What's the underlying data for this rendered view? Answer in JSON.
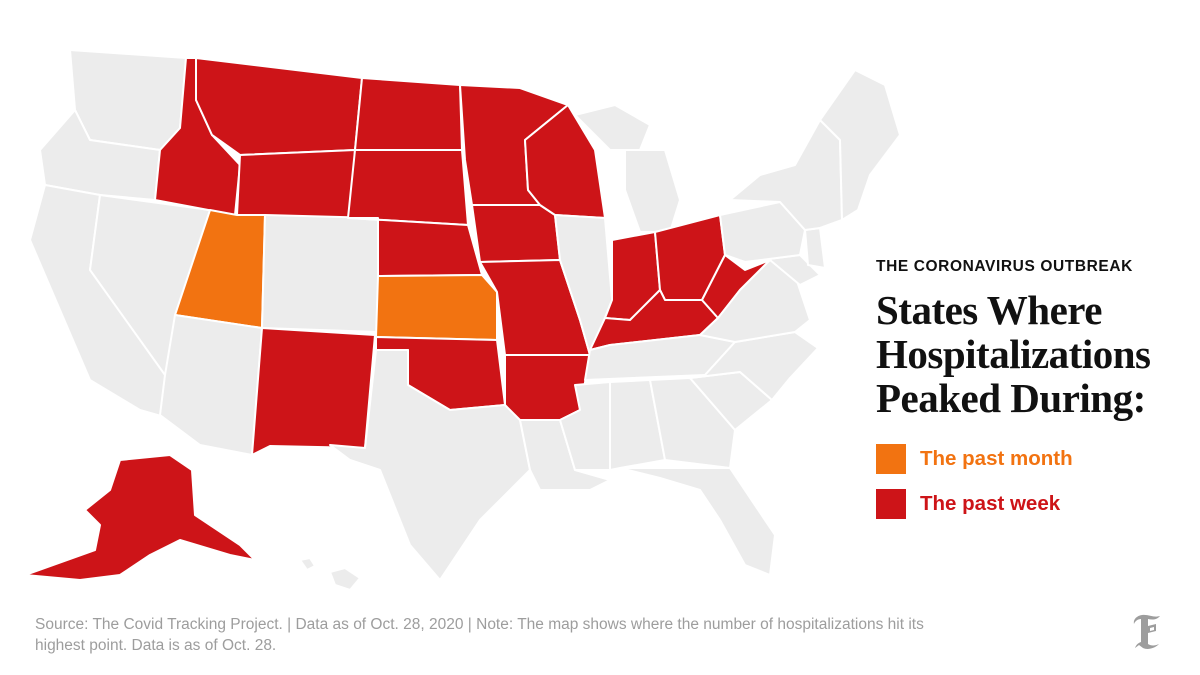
{
  "kicker": "THE CORONAVIRUS OUTBREAK",
  "headline_lines": [
    "States Where",
    "Hospitalizations",
    "Peaked During:"
  ],
  "legend": [
    {
      "label": "The past month",
      "color": "#f27311",
      "category": "month"
    },
    {
      "label": "The past week",
      "color": "#cd1418",
      "category": "week"
    }
  ],
  "base_color": "#ececec",
  "source_text": "Source: The Covid Tracking Project. | Data as of Oct. 28, 2020 | Note: The map shows where the number of hospitalizations hit its highest point. Data is as of Oct. 28.",
  "logo_icon": "nyt-t-logo-icon",
  "states_peaked_past_month": [
    "Utah",
    "Kansas"
  ],
  "states_peaked_past_week": [
    "Alaska",
    "Montana",
    "Idaho",
    "Wyoming",
    "North Dakota",
    "South Dakota",
    "Nebraska",
    "Minnesota",
    "Iowa",
    "Wisconsin",
    "Missouri",
    "Arkansas",
    "Oklahoma",
    "New Mexico",
    "Indiana",
    "Ohio",
    "Kentucky",
    "West Virginia"
  ]
}
